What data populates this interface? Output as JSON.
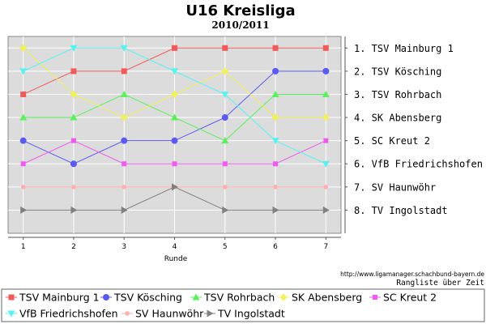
{
  "chart_data": {
    "type": "line",
    "title": "U16 Kreisliga",
    "subtitle": "2010/2011",
    "xlabel": "Runde",
    "x": [
      1,
      2,
      3,
      4,
      5,
      6,
      7
    ],
    "xlim": [
      0.7,
      7.3
    ],
    "ylim": [
      9.0,
      0.5
    ],
    "y_inverted": true,
    "grid": true,
    "ranking_labels": [
      "1. TSV Mainburg 1",
      "2. TSV Kösching",
      "3. TSV Rohrbach",
      "4. SK Abensberg",
      "5. SC Kreut 2",
      "6. VfB Friedrichshofen",
      "7. SV Haunwöhr",
      "8. TV Ingolstadt"
    ],
    "source": "http://www.ligamanager.schachbund-bayern.de",
    "caption": "Rangliste über Zeit",
    "legend_position": "bottom",
    "series": [
      {
        "name": "TSV Mainburg 1",
        "color": "#f15a5a",
        "marker": "square",
        "values": [
          3,
          2,
          2,
          1,
          1,
          1,
          1
        ]
      },
      {
        "name": "TSV Kösching",
        "color": "#5a5af1",
        "marker": "circle",
        "values": [
          5,
          6,
          5,
          5,
          4,
          2,
          2
        ]
      },
      {
        "name": "TSV Rohrbach",
        "color": "#5af15a",
        "marker": "triangle-up",
        "values": [
          4,
          4,
          3,
          4,
          5,
          3,
          3
        ]
      },
      {
        "name": "SK Abensberg",
        "color": "#f1f15a",
        "marker": "diamond",
        "values": [
          1,
          3,
          4,
          3,
          2,
          4,
          4
        ]
      },
      {
        "name": "SC Kreut 2",
        "color": "#f15af1",
        "marker": "square-small",
        "values": [
          6,
          5,
          6,
          6,
          6,
          6,
          5
        ]
      },
      {
        "name": "VfB Friedrichshofen",
        "color": "#5af1f1",
        "marker": "triangle-down",
        "values": [
          2,
          1,
          1,
          2,
          3,
          5,
          6
        ]
      },
      {
        "name": "SV Haunwöhr",
        "color": "#ffafaf",
        "marker": "circle-small",
        "values": [
          7,
          7,
          7,
          7,
          7,
          7,
          7
        ]
      },
      {
        "name": "TV Ingolstadt",
        "color": "#808080",
        "marker": "triangle-right",
        "values": [
          8,
          8,
          8,
          7,
          8,
          8,
          8
        ]
      }
    ]
  }
}
